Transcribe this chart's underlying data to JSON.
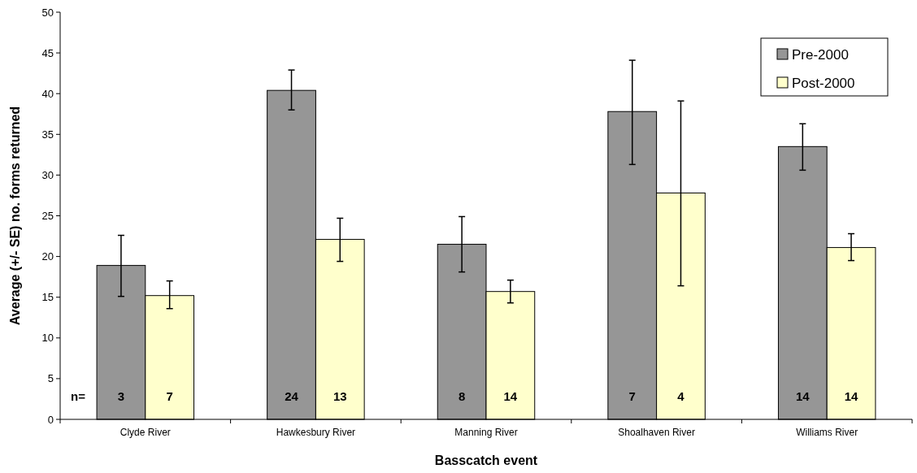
{
  "chart_data": {
    "type": "bar",
    "xlabel": "Basscatch event",
    "ylabel": "Average (+/- SE) no. forms returned",
    "categories": [
      "Clyde River",
      "Hawkesbury River",
      "Manning River",
      "Shoalhaven River",
      "Williams River"
    ],
    "series": [
      {
        "name": "Pre-2000",
        "color": "#969696",
        "values": [
          18.9,
          40.4,
          21.5,
          37.8,
          33.5
        ],
        "errors": [
          [
            15.1,
            22.6
          ],
          [
            38.0,
            42.9
          ],
          [
            18.1,
            24.9
          ],
          [
            31.3,
            44.1
          ],
          [
            30.6,
            36.3
          ]
        ]
      },
      {
        "name": "Post-2000",
        "color": "#ffffcc",
        "values": [
          15.2,
          22.1,
          15.7,
          27.8,
          21.1
        ],
        "errors": [
          [
            13.6,
            17.0
          ],
          [
            19.4,
            24.7
          ],
          [
            14.3,
            17.1
          ],
          [
            16.4,
            39.1
          ],
          [
            19.5,
            22.8
          ]
        ]
      }
    ],
    "annotations": [
      "n=",
      "3",
      "7",
      "24",
      "13",
      "8",
      "14",
      "7",
      "4",
      "14",
      "14"
    ],
    "ylim": [
      0,
      50
    ],
    "yticks": [
      0,
      5,
      10,
      15,
      20,
      25,
      30,
      35,
      40,
      45,
      50
    ],
    "grid": false,
    "legend": "top right"
  }
}
